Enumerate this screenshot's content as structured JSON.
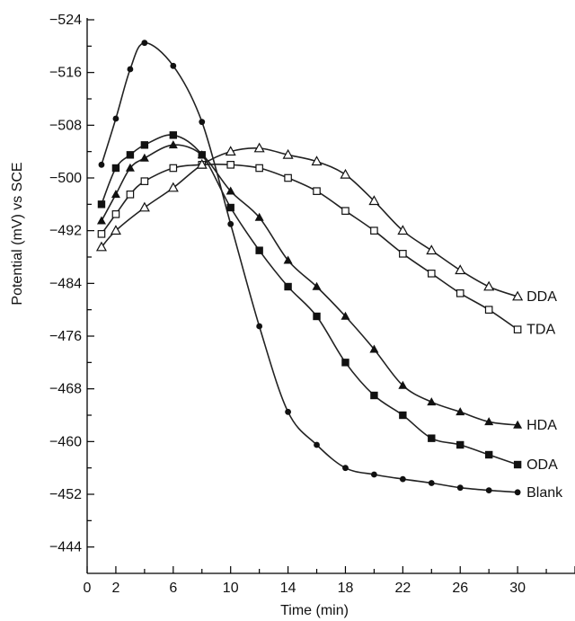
{
  "chart_data": {
    "type": "scatter",
    "title": "",
    "xlabel": "Time (min)",
    "ylabel": "Potential (mV) vs SCE",
    "xlim": [
      0,
      34
    ],
    "ylim": [
      -440,
      -524
    ],
    "x_ticks": [
      0,
      2,
      6,
      10,
      14,
      18,
      22,
      26,
      30
    ],
    "x_tick_labels": [
      "0",
      "2",
      "6",
      "10",
      "14",
      "18",
      "22",
      "26",
      "30"
    ],
    "y_ticks": [
      -524,
      -516,
      -508,
      -500,
      -492,
      -484,
      -476,
      -468,
      -460,
      -452,
      -444
    ],
    "y_tick_labels": [
      "−524",
      "−516",
      "−508",
      "−500",
      "−492",
      "−484",
      "−476",
      "−468",
      "−460",
      "−452",
      "−444"
    ],
    "grid": false,
    "legend": "end-of-line labels",
    "series": [
      {
        "name": "Blank",
        "marker": "filled-circle",
        "x": [
          1,
          2,
          3,
          4,
          6,
          8,
          10,
          12,
          14,
          16,
          18,
          20,
          22,
          24,
          26,
          28,
          30
        ],
        "y": [
          -502,
          -509,
          -516.5,
          -520.5,
          -517,
          -508.5,
          -493,
          -477.5,
          -464.5,
          -459.5,
          -456,
          -455,
          -454.3,
          -453.7,
          -453,
          -452.6,
          -452.3
        ]
      },
      {
        "name": "ODA",
        "marker": "filled-square",
        "x": [
          1,
          2,
          3,
          4,
          6,
          8,
          10,
          12,
          14,
          16,
          18,
          20,
          22,
          24,
          26,
          28,
          30
        ],
        "y": [
          -496,
          -501.5,
          -503.5,
          -505,
          -506.5,
          -503.5,
          -495.5,
          -489,
          -483.5,
          -479,
          -472,
          -467,
          -464,
          -460.5,
          -459.5,
          -458,
          -456.5
        ]
      },
      {
        "name": "HDA",
        "marker": "filled-triangle",
        "x": [
          1,
          2,
          3,
          4,
          6,
          8,
          10,
          12,
          14,
          16,
          18,
          20,
          22,
          24,
          26,
          28,
          30
        ],
        "y": [
          -493.5,
          -497.5,
          -501.5,
          -503,
          -505,
          -503.5,
          -498,
          -494,
          -487.5,
          -483.5,
          -479,
          -474,
          -468.5,
          -466,
          -464.5,
          -463,
          -462.5
        ]
      },
      {
        "name": "TDA",
        "marker": "open-square",
        "x": [
          1,
          2,
          3,
          4,
          6,
          8,
          10,
          12,
          14,
          16,
          18,
          20,
          22,
          24,
          26,
          28,
          30
        ],
        "y": [
          -491.5,
          -494.5,
          -497.5,
          -499.5,
          -501.5,
          -502,
          -502,
          -501.5,
          -500,
          -498,
          -495,
          -492,
          -488.5,
          -485.5,
          -482.5,
          -480,
          -477
        ]
      },
      {
        "name": "DDA",
        "marker": "open-triangle",
        "x": [
          1,
          2,
          4,
          6,
          8,
          10,
          12,
          14,
          16,
          18,
          20,
          22,
          24,
          26,
          28,
          30
        ],
        "y": [
          -489.5,
          -492,
          -495.5,
          -498.5,
          -502,
          -504,
          -504.5,
          -503.5,
          -502.5,
          -500.5,
          -496.5,
          -492,
          -489,
          -486,
          -483.5,
          -482
        ]
      }
    ]
  }
}
